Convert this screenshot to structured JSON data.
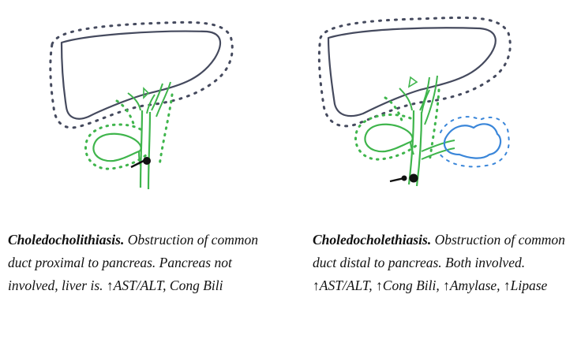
{
  "left": {
    "title": "Choledocholithiasis.",
    "description": " Obstruction of common duct proximal to pancreas. Pancreas not involved, liver is. ↑AST/ALT, Cong Bili"
  },
  "right": {
    "title": "Choledocholethiasis.",
    "description": " Obstruction of common duct distal to pancreas. Both involved. ↑AST/ALT, ↑Cong Bili, ↑Amylase, ↑Lipase"
  },
  "colors": {
    "liver": "#454a5e",
    "biliary": "#3fb54c",
    "pancreas": "#3a86d9",
    "stone": "#111111"
  }
}
